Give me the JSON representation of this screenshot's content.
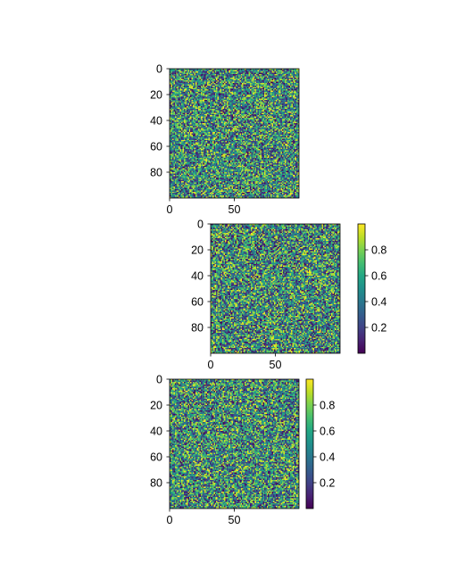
{
  "chart_data": [
    {
      "type": "heatmap",
      "title": "",
      "xlabel": "",
      "ylabel": "",
      "rows": 100,
      "cols": 100,
      "values_description": "uniform random values in [0, 1)",
      "colormap": "viridis",
      "xlim": [
        0,
        100
      ],
      "ylim": [
        100,
        0
      ],
      "x_ticks": [
        0,
        50
      ],
      "y_ticks": [
        0,
        20,
        40,
        60,
        80
      ],
      "colorbar": null,
      "seed": 11
    },
    {
      "type": "heatmap",
      "title": "",
      "xlabel": "",
      "ylabel": "",
      "rows": 100,
      "cols": 100,
      "values_description": "uniform random values in [0, 1)",
      "colormap": "viridis",
      "xlim": [
        0,
        100
      ],
      "ylim": [
        100,
        0
      ],
      "x_ticks": [
        0,
        50
      ],
      "y_ticks": [
        0,
        20,
        40,
        60,
        80
      ],
      "colorbar": {
        "ticks": [
          0.2,
          0.4,
          0.6,
          0.8
        ],
        "range": [
          0.0,
          1.0
        ],
        "placement": "right, separated"
      },
      "seed": 23
    },
    {
      "type": "heatmap",
      "title": "",
      "xlabel": "",
      "ylabel": "",
      "rows": 100,
      "cols": 100,
      "values_description": "uniform random values in [0, 1)",
      "colormap": "viridis",
      "xlim": [
        0,
        100
      ],
      "ylim": [
        100,
        0
      ],
      "x_ticks": [
        0,
        50
      ],
      "y_ticks": [
        0,
        20,
        40,
        60,
        80
      ],
      "colorbar": {
        "ticks": [
          0.2,
          0.4,
          0.6,
          0.8
        ],
        "range": [
          0.0,
          1.0
        ],
        "placement": "right, adjacent"
      },
      "seed": 37
    }
  ]
}
